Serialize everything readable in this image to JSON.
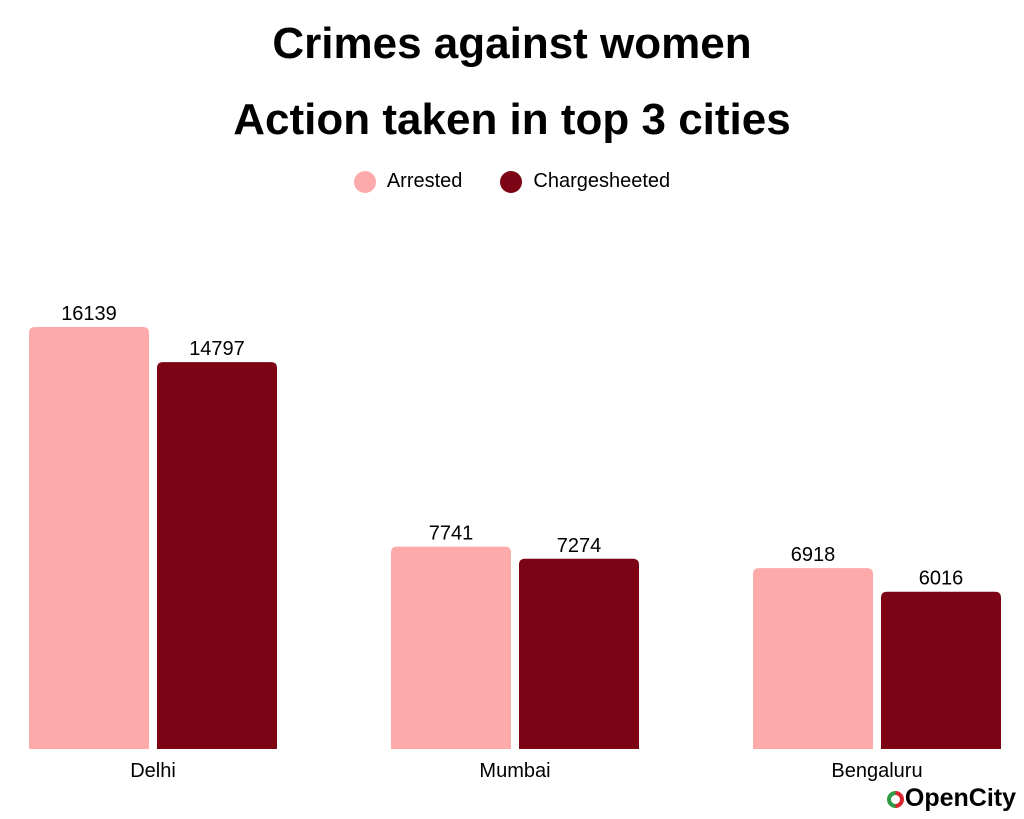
{
  "chart_data": {
    "type": "bar",
    "title": "Crimes against women",
    "subtitle": "Action taken in top 3 cities",
    "categories": [
      "Delhi",
      "Mumbai",
      "Bengaluru"
    ],
    "series": [
      {
        "name": "Arrested",
        "values": [
          16139,
          7741,
          6918
        ],
        "color": "#fcaaaa"
      },
      {
        "name": "Chargesheeted",
        "values": [
          14797,
          7274,
          6016
        ],
        "color": "#7d0414"
      }
    ],
    "xlabel": "",
    "ylabel": "",
    "ylim": [
      0,
      16139
    ],
    "grid": false,
    "legend_position": "top-center",
    "data_labels": true
  },
  "branding": {
    "logo_text": "OpenCity",
    "logo_icon": "opencity-logo-icon"
  }
}
